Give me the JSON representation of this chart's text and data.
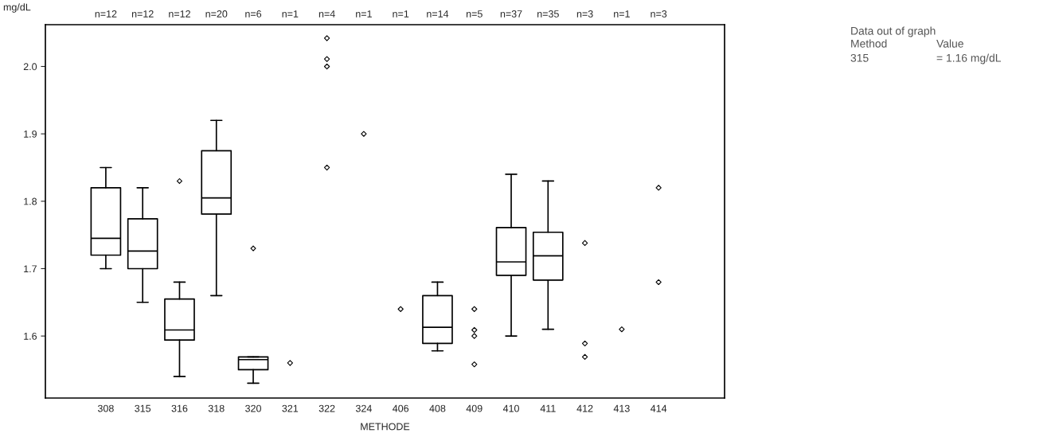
{
  "chart_data": {
    "type": "box",
    "ylabel": "mg/dL",
    "xlabel": "METHODE",
    "categories": [
      "308",
      "315",
      "316",
      "318",
      "320",
      "321",
      "322",
      "324",
      "406",
      "408",
      "409",
      "410",
      "411",
      "412",
      "413",
      "414"
    ],
    "boxes": [
      {
        "low": 1.7,
        "q1": 1.72,
        "median": 1.745,
        "q3": 1.82,
        "high": 1.85
      },
      {
        "low": 1.65,
        "q1": 1.7,
        "median": 1.726,
        "q3": 1.774,
        "high": 1.82
      },
      {
        "low": 1.54,
        "q1": 1.594,
        "median": 1.609,
        "q3": 1.655,
        "high": 1.68,
        "outliers": [
          1.83
        ]
      },
      {
        "low": 1.66,
        "q1": 1.781,
        "median": 1.805,
        "q3": 1.875,
        "high": 1.92
      },
      {
        "low": 1.53,
        "q1": 1.55,
        "median": 1.565,
        "q3": 1.569,
        "high": 1.569,
        "outliers": [
          1.73
        ]
      },
      null,
      null,
      null,
      null,
      {
        "low": 1.578,
        "q1": 1.589,
        "median": 1.613,
        "q3": 1.66,
        "high": 1.68
      },
      null,
      {
        "low": 1.6,
        "q1": 1.69,
        "median": 1.71,
        "q3": 1.761,
        "high": 1.84
      },
      {
        "low": 1.61,
        "q1": 1.683,
        "median": 1.719,
        "q3": 1.754,
        "high": 1.83
      },
      null,
      null,
      null
    ],
    "series": [
      {
        "type": "scatter",
        "marker": "diamond",
        "color": "#000000",
        "x": [
          "321",
          "322",
          "322",
          "322",
          "322",
          "324",
          "406",
          "409",
          "409",
          "409",
          "409",
          "412",
          "412",
          "412",
          "413",
          "414",
          "414"
        ],
        "values": [
          1.56,
          2.042,
          2.011,
          2.0,
          1.85,
          1.9,
          1.64,
          1.64,
          1.609,
          1.6,
          1.558,
          1.738,
          1.589,
          1.569,
          1.61,
          1.82,
          1.68
        ]
      }
    ],
    "ylim": [
      1.508,
      2.062
    ],
    "yticks": [
      1.6,
      1.7,
      1.8,
      1.9,
      {
        "value": 2.0,
        "label": "2.0"
      }
    ],
    "grid": false,
    "annotations": [
      "n=12",
      "n=12",
      "n=12",
      "n=20",
      "n=6",
      "n=1",
      "n=4",
      "n=1",
      "n=1",
      "n=14",
      "n=5",
      "n=37",
      "n=35",
      "n=3",
      "n=1",
      "n=3",
      "Data out of graph",
      "Method",
      "Value",
      "315",
      "= 1.16 mg/dL"
    ]
  }
}
